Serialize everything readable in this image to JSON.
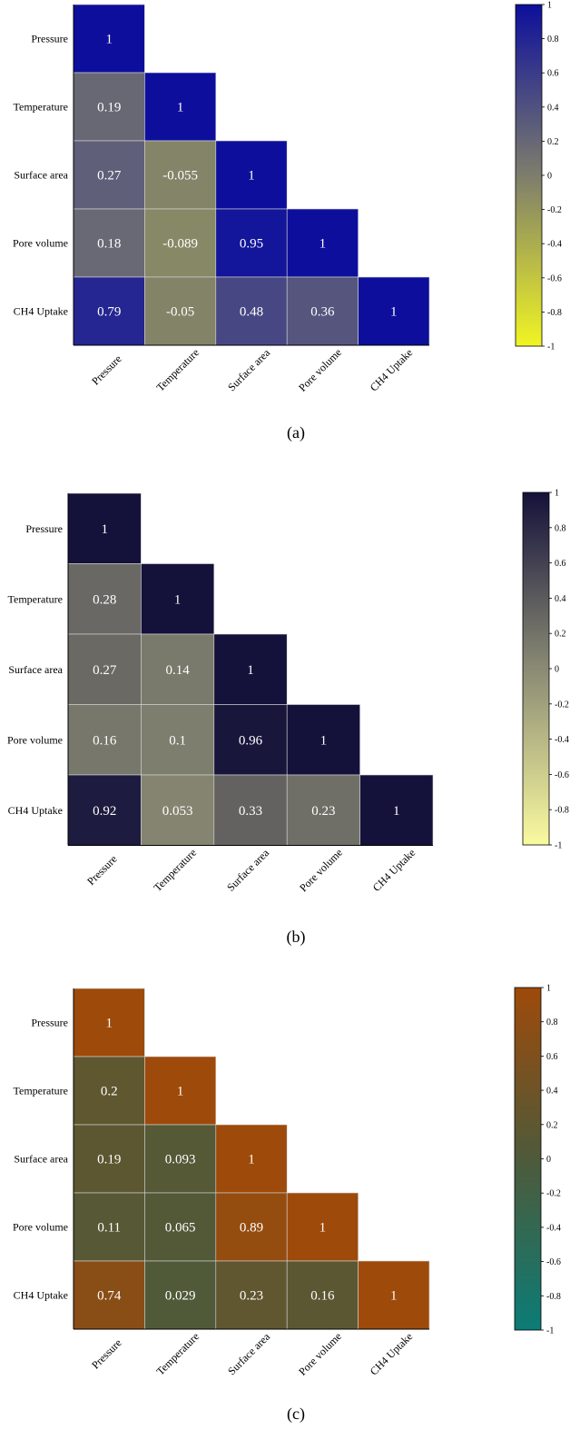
{
  "chart_data": [
    {
      "type": "heatmap",
      "panel_label": "(a)",
      "variables": [
        "Pressure",
        "Temperature",
        "Surface area",
        "Pore volume",
        "CH4 Uptake"
      ],
      "matrix": [
        [
          1
        ],
        [
          0.19,
          1
        ],
        [
          0.27,
          -0.055,
          1
        ],
        [
          0.18,
          -0.089,
          0.95,
          1
        ],
        [
          0.79,
          -0.05,
          0.48,
          0.36,
          1
        ]
      ],
      "value_labels": [
        [
          "1"
        ],
        [
          "0.19",
          "1"
        ],
        [
          "0.27",
          "-0.055",
          "1"
        ],
        [
          "0.18",
          "-0.089",
          "0.95",
          "1"
        ],
        [
          "0.79",
          "-0.05",
          "0.48",
          "0.36",
          "1"
        ]
      ],
      "colorbar": {
        "range": [
          -1,
          1
        ],
        "ticks": [
          "1",
          "0.8",
          "0.6",
          "0.4",
          "0.2",
          "0",
          "-0.2",
          "-0.4",
          "-0.6",
          "-0.8",
          "-1"
        ],
        "low_color": "#f0f523",
        "mid_color": "#7d7d6c",
        "high_color": "#0d0f9c"
      }
    },
    {
      "type": "heatmap",
      "panel_label": "(b)",
      "variables": [
        "Pressure",
        "Temperature",
        "Surface area",
        "Pore volume",
        "CH4 Uptake"
      ],
      "matrix": [
        [
          1
        ],
        [
          0.28,
          1
        ],
        [
          0.27,
          0.14,
          1
        ],
        [
          0.16,
          0.1,
          0.96,
          1
        ],
        [
          0.92,
          0.053,
          0.33,
          0.23,
          1
        ]
      ],
      "value_labels": [
        [
          "1"
        ],
        [
          "0.28",
          "1"
        ],
        [
          "0.27",
          "0.14",
          "1"
        ],
        [
          "0.16",
          "0.1",
          "0.96",
          "1"
        ],
        [
          "0.92",
          "0.053",
          "0.33",
          "0.23",
          "1"
        ]
      ],
      "colorbar": {
        "range": [
          -1,
          1
        ],
        "ticks": [
          "1",
          "0.8",
          "0.6",
          "0.4",
          "0.2",
          "0",
          "-0.2",
          "-0.4",
          "-0.6",
          "-0.8",
          "-1"
        ],
        "low_color": "#fafaa0",
        "mid_color": "#8a8a74",
        "high_color": "#14113a"
      }
    },
    {
      "type": "heatmap",
      "panel_label": "(c)",
      "variables": [
        "Pressure",
        "Temperature",
        "Surface area",
        "Pore volume",
        "CH4 Uptake"
      ],
      "matrix": [
        [
          1
        ],
        [
          0.2,
          1
        ],
        [
          0.19,
          0.093,
          1
        ],
        [
          0.11,
          0.065,
          0.89,
          1
        ],
        [
          0.74,
          0.029,
          0.23,
          0.16,
          1
        ]
      ],
      "value_labels": [
        [
          "1"
        ],
        [
          "0.2",
          "1"
        ],
        [
          "0.19",
          "0.093",
          "1"
        ],
        [
          "0.11",
          "0.065",
          "0.89",
          "1"
        ],
        [
          "0.74",
          "0.029",
          "0.23",
          "0.16",
          "1"
        ]
      ],
      "colorbar": {
        "range": [
          -1,
          1
        ],
        "ticks": [
          "1",
          "0.8",
          "0.6",
          "0.4",
          "0.2",
          "0",
          "-0.2",
          "-0.4",
          "-0.6",
          "-0.8",
          "-1"
        ],
        "low_color": "#0b7c76",
        "mid_color": "#4e5a3a",
        "high_color": "#9e4a0a"
      }
    }
  ]
}
